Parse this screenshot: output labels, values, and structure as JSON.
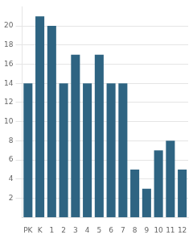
{
  "chart_data": {
    "type": "bar",
    "categories": [
      "PK",
      "K",
      "1",
      "2",
      "3",
      "4",
      "5",
      "6",
      "7",
      "8",
      "9",
      "10",
      "11",
      "12"
    ],
    "values": [
      14,
      21,
      20,
      14,
      17,
      14,
      17,
      14,
      14,
      5,
      3,
      7,
      8,
      5
    ],
    "color": "#2e6482",
    "ylim": [
      0,
      22
    ],
    "yticks": [
      2,
      4,
      6,
      8,
      10,
      12,
      14,
      16,
      18,
      20
    ],
    "grid": true
  }
}
